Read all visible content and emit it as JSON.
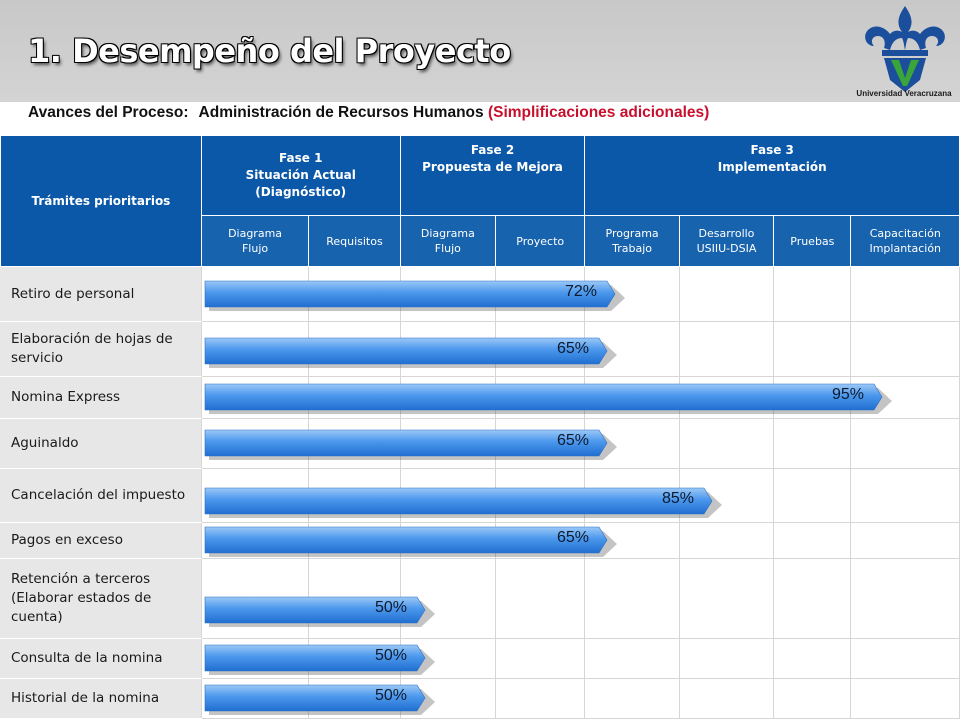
{
  "header": {
    "title": "1. Desempeño del Proyecto",
    "logo_caption": "Universidad Veracruzana",
    "subtitle_prefix": "Avances del Proceso:",
    "subtitle_process": "Administración de Recursos Humanos",
    "subtitle_note": "(Simplificaciones adicionales)"
  },
  "table": {
    "row_header": "Trámites prioritarios",
    "phases": [
      {
        "line1": "Fase 1",
        "line2": "Situación Actual",
        "line3": "(Diagnóstico)"
      },
      {
        "line1": "Fase 2",
        "line2": "Propuesta de Mejora",
        "line3": ""
      },
      {
        "line1": "Fase 3",
        "line2": "Implementación",
        "line3": ""
      }
    ],
    "subcolumns": [
      {
        "line1": "Diagrama",
        "line2": "Flujo"
      },
      {
        "line1": "Requisitos",
        "line2": ""
      },
      {
        "line1": "Diagrama",
        "line2": "Flujo"
      },
      {
        "line1": "Proyecto",
        "line2": ""
      },
      {
        "line1": "Programa",
        "line2": "Trabajo"
      },
      {
        "line1": "Desarrollo",
        "line2": "USIIU-DSIA"
      },
      {
        "line1": "Pruebas",
        "line2": ""
      },
      {
        "line1": "Capacitación",
        "line2": "Implantación"
      }
    ],
    "rows": [
      {
        "name": "Retiro de personal",
        "progress": "72%"
      },
      {
        "name": "Elaboración de hojas de servicio",
        "progress": "65%"
      },
      {
        "name": "Nomina Express",
        "progress": "95%"
      },
      {
        "name": "Aguinaldo",
        "progress": "65%"
      },
      {
        "name": "Cancelación del impuesto",
        "progress": "85%"
      },
      {
        "name": "Pagos en exceso",
        "progress": "65%"
      },
      {
        "name": "Retención a terceros (Elaborar estados de cuenta)",
        "progress": "50%"
      },
      {
        "name": "Consulta de la nomina",
        "progress": "50%"
      },
      {
        "name": "Historial de la nomina",
        "progress": "50%"
      }
    ]
  },
  "colors": {
    "header_blue": "#0b58a8",
    "bar_blue": "#3c8ee8",
    "accent_red": "#c8102e",
    "logo_blue": "#1b4f9c",
    "logo_green": "#3aa63a"
  }
}
